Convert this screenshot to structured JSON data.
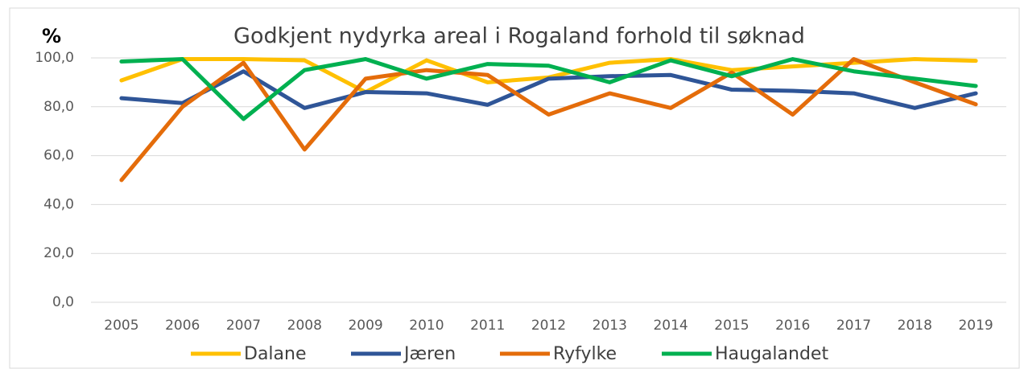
{
  "chart_data": {
    "type": "line",
    "title": "Godkjent nydyrka areal i Rogaland forhold til søknad",
    "y_label": "%",
    "categories": [
      "2005",
      "2006",
      "2007",
      "2008",
      "2009",
      "2010",
      "2011",
      "2012",
      "2013",
      "2014",
      "2015",
      "2016",
      "2017",
      "2018",
      "2019"
    ],
    "series": [
      {
        "name": "Dalane",
        "color": "#ffc000",
        "values": [
          90.8,
          99.5,
          99.5,
          99,
          86,
          99,
          90,
          92,
          98,
          99.5,
          95,
          96.5,
          98,
          99.5,
          98.8
        ]
      },
      {
        "name": "Jæren",
        "color": "#2f5597",
        "values": [
          83.5,
          81.5,
          94.5,
          79.5,
          86,
          85.5,
          80.8,
          91.5,
          92.5,
          93,
          87,
          86.5,
          85.5,
          79.5,
          85.5
        ]
      },
      {
        "name": "Ryfylke",
        "color": "#e46c0a",
        "values": [
          50,
          80,
          98,
          62.5,
          91.5,
          95,
          93,
          76.8,
          85.5,
          79.5,
          94,
          76.8,
          99.5,
          90,
          81
        ]
      },
      {
        "name": "Haugalandet",
        "color": "#00b050",
        "values": [
          98.5,
          99.5,
          75,
          95,
          99.5,
          91.5,
          97.5,
          96.8,
          90,
          99,
          92.5,
          99.5,
          94.5,
          91.5,
          88.5
        ]
      }
    ],
    "ylim": [
      0,
      100
    ],
    "yticks": [
      {
        "value": 0,
        "label": "0,0"
      },
      {
        "value": 20,
        "label": "20,0"
      },
      {
        "value": 40,
        "label": "40,0"
      },
      {
        "value": 60,
        "label": "60,0"
      },
      {
        "value": 80,
        "label": "80,0"
      },
      {
        "value": 100,
        "label": "100,0"
      }
    ],
    "grid": true,
    "legend": "bottom"
  }
}
